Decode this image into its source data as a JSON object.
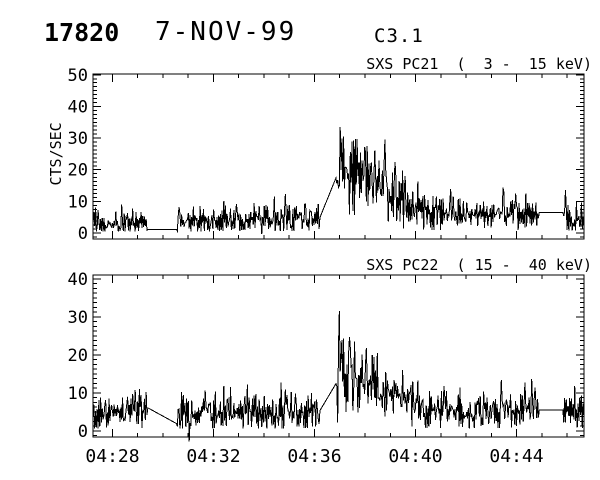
{
  "header": {
    "sequence_number": "17820",
    "date": "7-NOV-99",
    "goes_class": "C3.1"
  },
  "chart_data": [
    {
      "name": "SXS PC21",
      "type": "line",
      "title": "SXS PC21  (  3 -  15 keV)",
      "ylabel": "CTS/SEC",
      "x_unit": "time UT, minutes after 04:00",
      "xlim": [
        27.228,
        46.673
      ],
      "ylim": [
        -1.9,
        50.26
      ],
      "y_major_ticks": [
        0,
        10,
        20,
        30,
        40,
        50
      ],
      "y_minor_step": 1.25,
      "x_major_ticks": [
        28,
        32,
        36,
        40,
        44
      ],
      "x_minor_step": 1,
      "x_tick_labels": [],
      "n_points": 583,
      "envelope": [
        [
          27.23,
          3.2
        ],
        [
          28.0,
          3.2
        ],
        [
          29.0,
          3.0
        ],
        [
          29.37,
          3.0
        ],
        [
          30.56,
          3.8
        ],
        [
          31.5,
          3.6
        ],
        [
          33.0,
          3.9
        ],
        [
          34.0,
          4.1
        ],
        [
          35.0,
          4.4
        ],
        [
          36.2,
          4.6
        ],
        [
          36.88,
          20.0
        ],
        [
          37.1,
          21.0
        ],
        [
          37.5,
          19.0
        ],
        [
          38.0,
          16.5
        ],
        [
          38.5,
          14.0
        ],
        [
          39.0,
          12.0
        ],
        [
          39.6,
          9.0
        ],
        [
          40.3,
          7.0
        ],
        [
          41.0,
          6.3
        ],
        [
          42.0,
          5.5
        ],
        [
          42.8,
          5.4
        ],
        [
          43.4,
          6.1
        ],
        [
          44.0,
          6.0
        ],
        [
          44.9,
          6.3
        ],
        [
          45.84,
          5.8
        ],
        [
          46.2,
          5.2
        ],
        [
          46.68,
          5.0
        ]
      ],
      "gaps": [
        {
          "t0": 29.37,
          "t1": 30.55,
          "v0": 1.05,
          "v1": 1.05
        },
        {
          "t0": 36.2,
          "t1": 36.88,
          "v0": 4.6,
          "v1": 18.0
        },
        {
          "t0": 44.9,
          "t1": 45.84,
          "v0": 6.5,
          "v1": 6.5
        }
      ],
      "spikes": [
        [
          37.02,
          33.5
        ],
        [
          37.15,
          30.5
        ],
        [
          37.55,
          29.3
        ],
        [
          38.0,
          27.2
        ],
        [
          38.4,
          26.0
        ],
        [
          39.2,
          22.5
        ],
        [
          34.85,
          12.3
        ],
        [
          32.9,
          9.2
        ],
        [
          28.35,
          9.0
        ],
        [
          30.65,
          8.2
        ],
        [
          41.4,
          13.9
        ],
        [
          43.5,
          13.0
        ],
        [
          45.95,
          13.6
        ],
        [
          33.9,
          -0.3
        ],
        [
          40.1,
          16.2
        ]
      ],
      "noise": {
        "rel": 0.25,
        "abs": 1.5,
        "spike_p": 0.025,
        "seed": 20211107,
        "cap": 30
      }
    },
    {
      "name": "SXS PC22",
      "type": "line",
      "title": "SXS PC22  ( 15 -  40 keV)",
      "ylabel": "",
      "x_unit": "time UT, minutes after 04:00",
      "xlim": [
        27.228,
        46.673
      ],
      "ylim": [
        -1.58,
        41.05
      ],
      "y_major_ticks": [
        0,
        10,
        20,
        30,
        40
      ],
      "y_minor_step": 1.25,
      "x_major_ticks": [
        28,
        32,
        36,
        40,
        44
      ],
      "x_minor_step": 1,
      "x_tick_labels": [
        "04:28",
        "04:32",
        "04:36",
        "04:40",
        "04:44"
      ],
      "n_points": 583,
      "envelope": [
        [
          27.23,
          4.3
        ],
        [
          28.3,
          4.6
        ],
        [
          29.0,
          5.4
        ],
        [
          29.37,
          6.0
        ],
        [
          30.56,
          4.6
        ],
        [
          31.5,
          4.3
        ],
        [
          33.0,
          4.4
        ],
        [
          34.0,
          4.6
        ],
        [
          35.0,
          4.8
        ],
        [
          36.2,
          5.0
        ],
        [
          36.88,
          15.0
        ],
        [
          37.1,
          16.5
        ],
        [
          37.5,
          14.5
        ],
        [
          38.0,
          13.0
        ],
        [
          38.5,
          11.5
        ],
        [
          39.0,
          10.0
        ],
        [
          39.6,
          8.5
        ],
        [
          40.3,
          5.8
        ],
        [
          41.0,
          5.2
        ],
        [
          42.0,
          4.8
        ],
        [
          43.0,
          5.0
        ],
        [
          43.6,
          5.5
        ],
        [
          44.9,
          5.5
        ],
        [
          45.84,
          5.3
        ],
        [
          46.68,
          4.8
        ]
      ],
      "gaps": [
        {
          "t0": 29.37,
          "t1": 30.55,
          "v0": 6.2,
          "v1": 1.9
        },
        {
          "t0": 36.2,
          "t1": 36.88,
          "v0": 5.2,
          "v1": 12.8
        },
        {
          "t0": 44.9,
          "t1": 45.84,
          "v0": 5.5,
          "v1": 5.5
        }
      ],
      "spikes": [
        [
          37.0,
          31.6
        ],
        [
          37.6,
          23.5
        ],
        [
          38.05,
          21.8
        ],
        [
          38.5,
          20.5
        ],
        [
          30.72,
          10.2
        ],
        [
          31.05,
          -2.8
        ],
        [
          35.25,
          9.8
        ],
        [
          39.9,
          13.0
        ],
        [
          43.4,
          13.4
        ],
        [
          44.75,
          11.5
        ],
        [
          46.3,
          11.8
        ],
        [
          28.6,
          9.0
        ],
        [
          33.4,
          8.8
        ],
        [
          34.9,
          9.5
        ]
      ],
      "noise": {
        "rel": 0.25,
        "abs": 1.5,
        "spike_p": 0.025,
        "seed": 19991107,
        "cap": 25
      }
    }
  ]
}
